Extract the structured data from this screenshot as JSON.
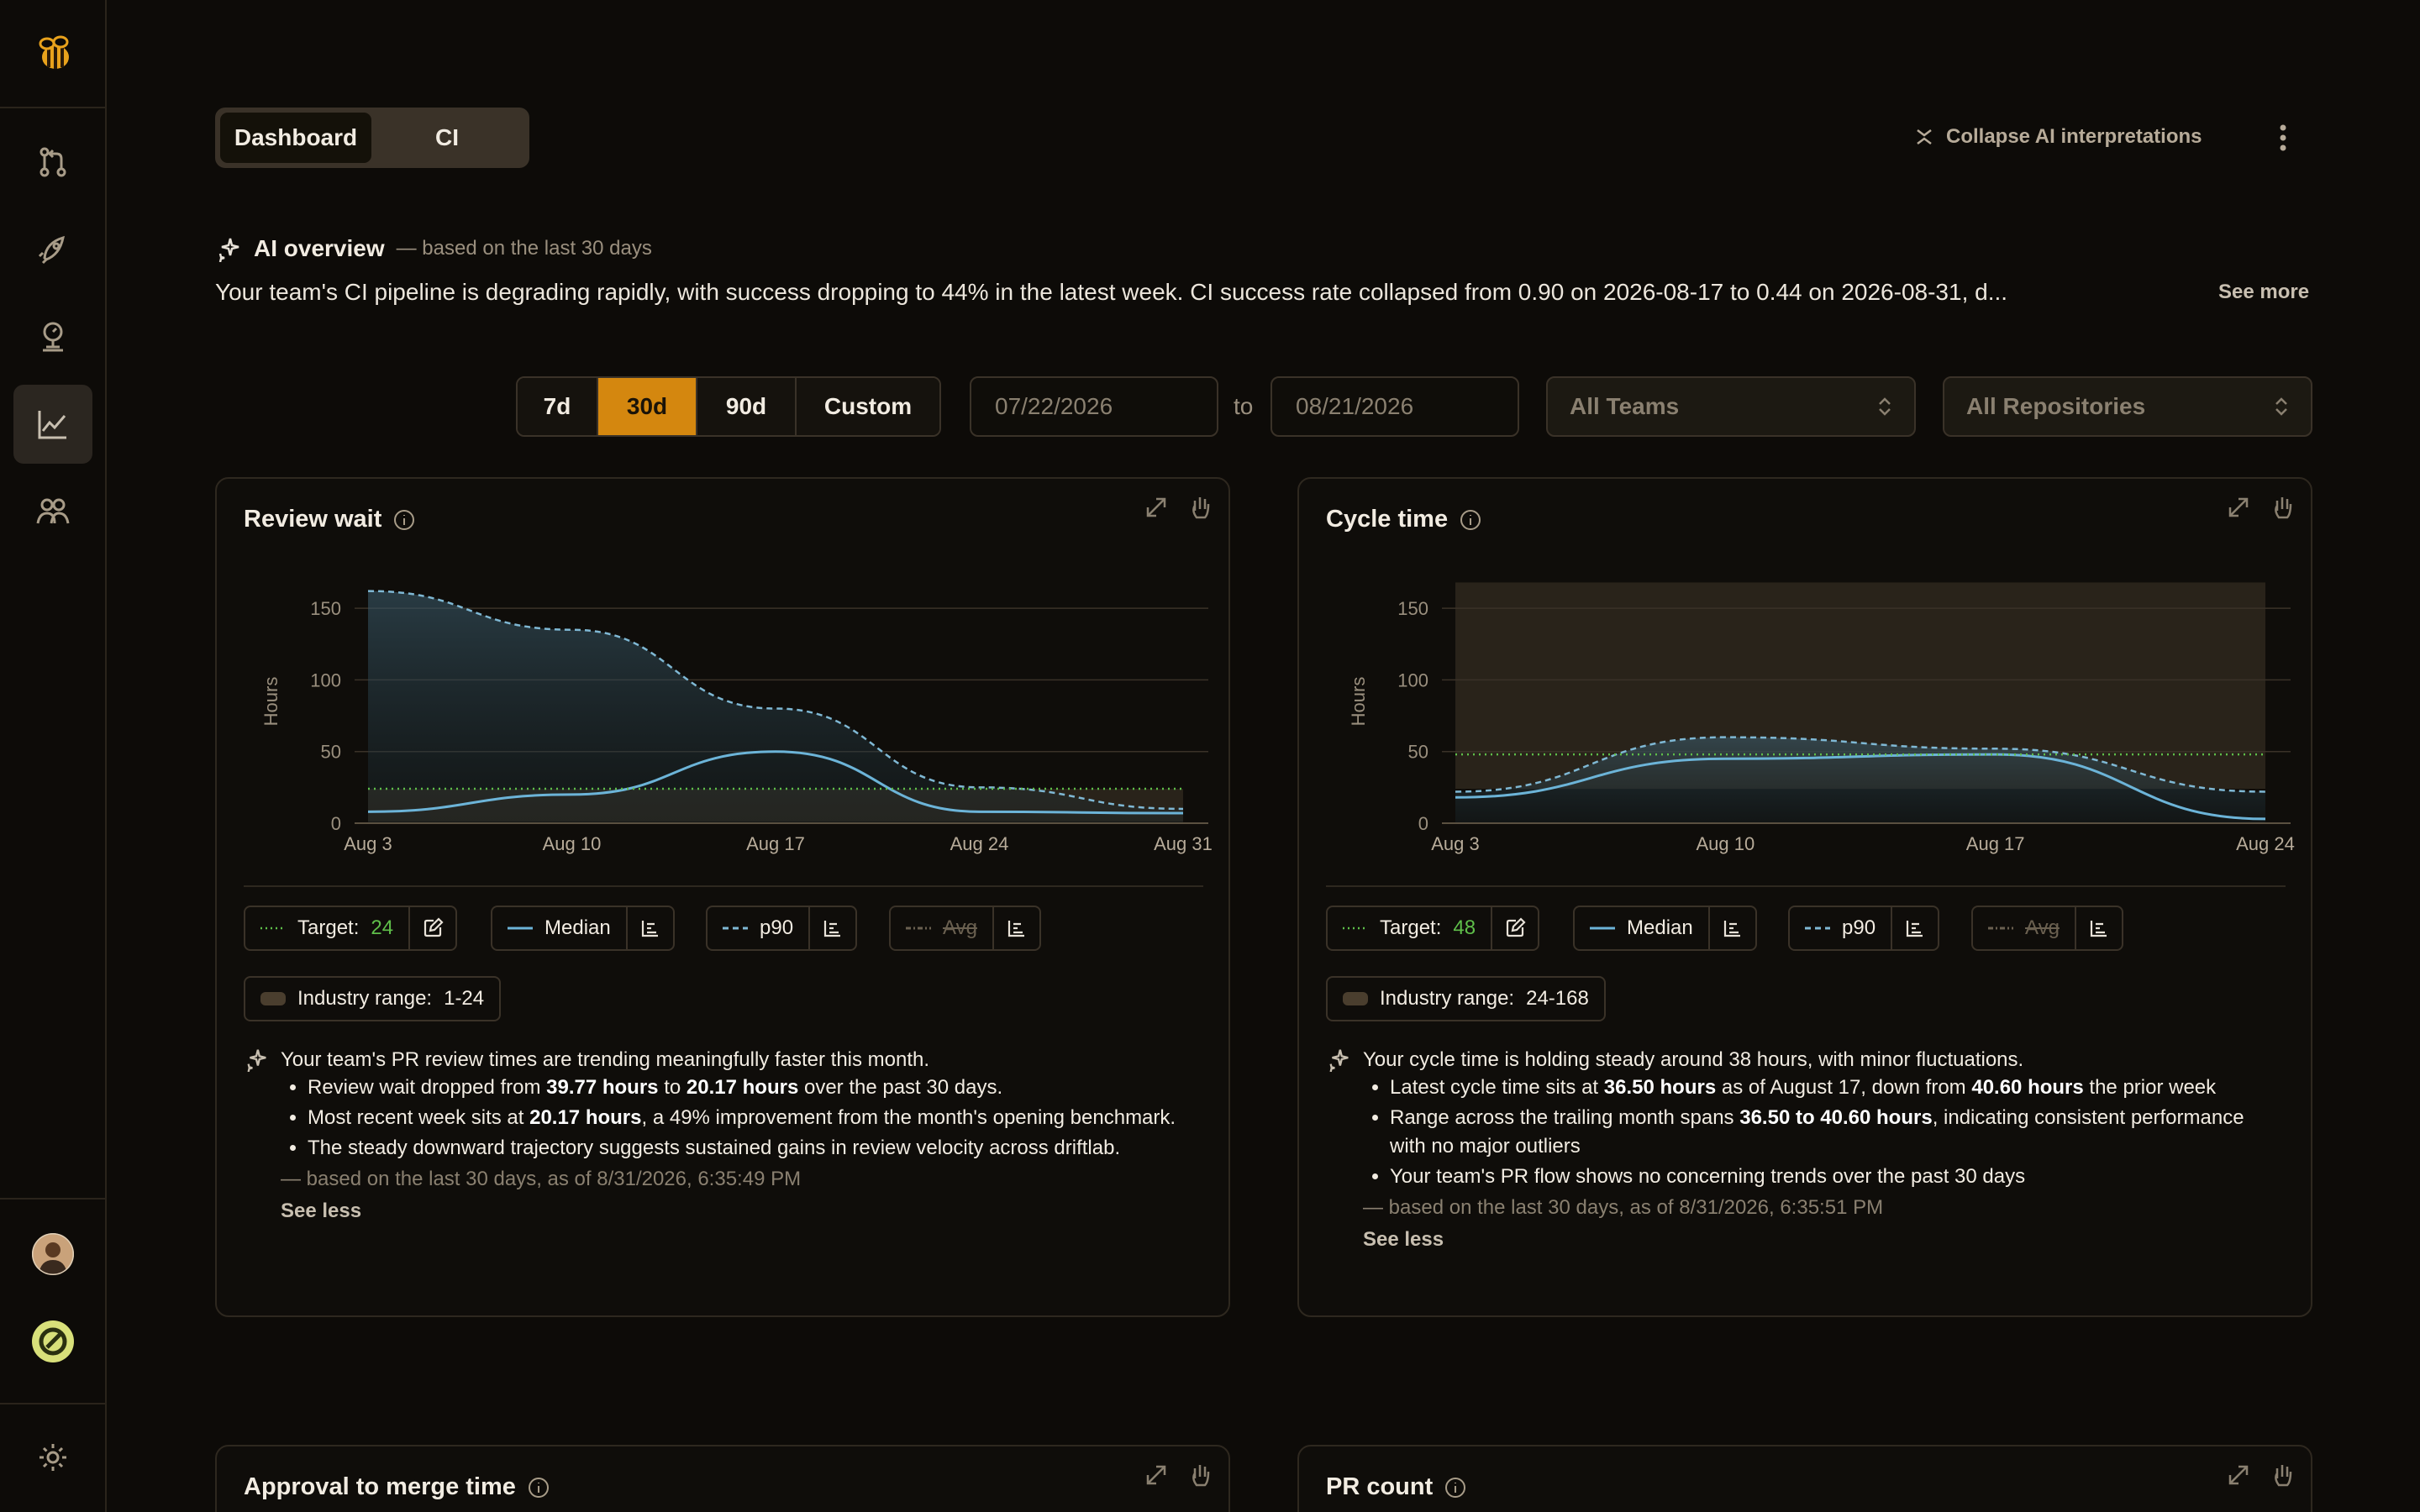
{
  "tabs": {
    "dashboard": "Dashboard",
    "ci": "CI"
  },
  "collapse_label": "Collapse AI interpretations",
  "ai_overview": {
    "title": "AI overview",
    "subtitle": "— based on the last 30 days",
    "text": "Your team's CI pipeline is degrading rapidly, with success dropping to 44% in the latest week. CI success rate collapsed from 0.90 on 2026-08-17 to 0.44 on 2026-08-31, d...",
    "see_more": "See more"
  },
  "filters": {
    "ranges": [
      "7d",
      "30d",
      "90d",
      "Custom"
    ],
    "active_range": "30d",
    "start_date": "07/22/2026",
    "to": "to",
    "end_date": "08/21/2026",
    "team": "All Teams",
    "repository": "All Repositories"
  },
  "colors": {
    "accent": "#d4870f",
    "median": "#6cb4d8",
    "p90": "#7fb8d4",
    "target": "#5fbf4a",
    "industry": "#4a3e2e"
  },
  "cards": {
    "review_wait": {
      "title": "Review wait",
      "target_label": "Target:",
      "target_value": "24",
      "median": "Median",
      "p90": "p90",
      "avg": "Avg",
      "industry_label": "Industry range:",
      "industry_value": "1-24",
      "interp_head": "Your team's PR review times are trending meaningfully faster this month.",
      "bullets": [
        [
          "Review wait dropped from ",
          "39.77 hours",
          " to ",
          "20.17 hours",
          " over the past 30 days."
        ],
        [
          "Most recent week sits at ",
          "20.17 hours",
          ", a 49% improvement from the month's opening benchmark.",
          "",
          ""
        ],
        [
          "The steady downward trajectory suggests sustained gains in review velocity across driftlab.",
          "",
          "",
          "",
          ""
        ]
      ],
      "based": "— based on the last 30 days, as of 8/31/2026, 6:35:49 PM",
      "see_less": "See less"
    },
    "cycle_time": {
      "title": "Cycle time",
      "target_label": "Target:",
      "target_value": "48",
      "median": "Median",
      "p90": "p90",
      "avg": "Avg",
      "industry_label": "Industry range:",
      "industry_value": "24-168",
      "interp_head": "Your cycle time is holding steady around 38 hours, with minor fluctuations.",
      "bullets": [
        [
          "Latest cycle time sits at ",
          "36.50 hours",
          " as of August 17, down from ",
          "40.60 hours",
          " the prior week"
        ],
        [
          "Range across the trailing month spans ",
          "36.50 to 40.60 hours",
          ", indicating consistent performance with no major outliers",
          "",
          ""
        ],
        [
          "Your team's PR flow shows no concerning trends over the past 30 days",
          "",
          "",
          "",
          ""
        ]
      ],
      "based": "— based on the last 30 days, as of 8/31/2026, 6:35:51 PM",
      "see_less": "See less"
    },
    "approval": {
      "title": "Approval to merge time"
    },
    "pr_count": {
      "title": "PR count"
    }
  },
  "chart_data": [
    {
      "type": "area",
      "ylabel": "Hours",
      "ylim": [
        0,
        170
      ],
      "yticks": [
        0,
        50,
        100,
        150
      ],
      "xticks": [
        "Aug 3",
        "Aug 10",
        "Aug 17",
        "Aug 24",
        "Aug 31"
      ],
      "target": 24,
      "industry_range": [
        1,
        24
      ],
      "series": [
        {
          "name": "Median",
          "x": [
            3,
            10,
            17,
            24,
            31
          ],
          "values": [
            8,
            20,
            50,
            8,
            7
          ]
        },
        {
          "name": "p90",
          "x": [
            3,
            10,
            17,
            24,
            31
          ],
          "values": [
            162,
            135,
            80,
            25,
            10
          ]
        }
      ]
    },
    {
      "type": "area",
      "ylabel": "Hours",
      "ylim": [
        0,
        170
      ],
      "yticks": [
        0,
        50,
        100,
        150
      ],
      "xticks": [
        "Aug 3",
        "Aug 10",
        "Aug 17",
        "Aug 24"
      ],
      "target": 48,
      "industry_range": [
        24,
        168
      ],
      "series": [
        {
          "name": "Median",
          "x": [
            3,
            10,
            17,
            24
          ],
          "values": [
            18,
            45,
            48,
            3
          ]
        },
        {
          "name": "p90",
          "x": [
            3,
            10,
            17,
            24
          ],
          "values": [
            22,
            60,
            52,
            22
          ]
        }
      ]
    }
  ]
}
